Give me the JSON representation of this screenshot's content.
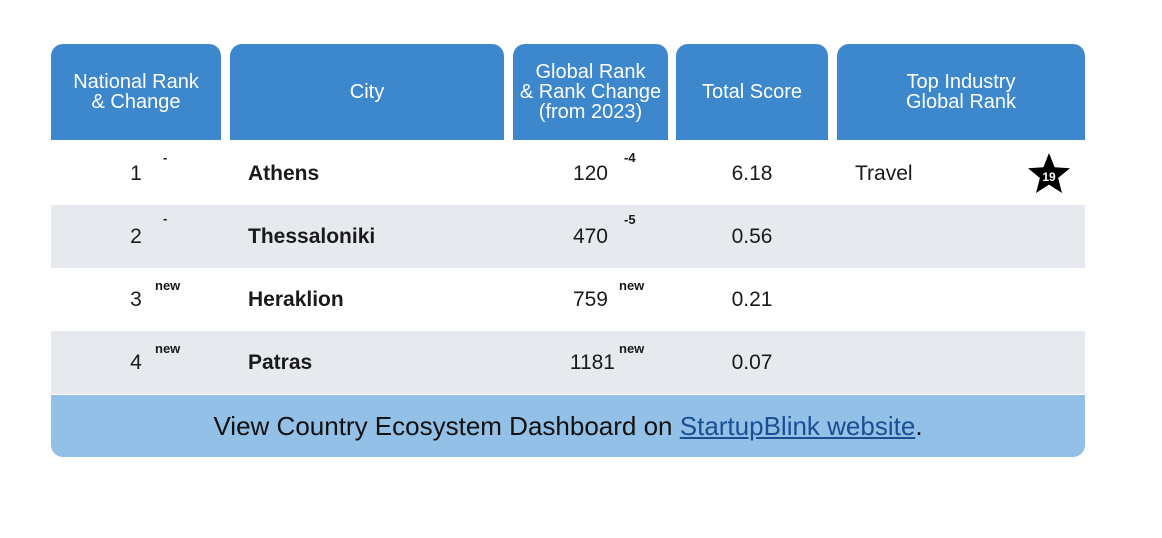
{
  "headers": {
    "national_rank": "National Rank\n& Change",
    "city": "City",
    "global_rank": "Global Rank\n& Rank Change\n(from 2023)",
    "total_score": "Total Score",
    "top_industry": "Top Industry\nGlobal Rank"
  },
  "rows": [
    {
      "rank": "1",
      "rank_change": "-",
      "city": "Athens",
      "global_rank": "120",
      "global_change": "-4",
      "score": "6.18",
      "industry": "Travel",
      "industry_rank": "19"
    },
    {
      "rank": "2",
      "rank_change": "-",
      "city": "Thessaloniki",
      "global_rank": "470",
      "global_change": "-5",
      "score": "0.56",
      "industry": "",
      "industry_rank": ""
    },
    {
      "rank": "3",
      "rank_change": "new",
      "city": "Heraklion",
      "global_rank": "759",
      "global_change": "new",
      "score": "0.21",
      "industry": "",
      "industry_rank": ""
    },
    {
      "rank": "4",
      "rank_change": "new",
      "city": "Patras",
      "global_rank": "1181",
      "global_change": "new",
      "score": "0.07",
      "industry": "",
      "industry_rank": ""
    }
  ],
  "footer": {
    "prefix": "View Country Ecosystem Dashboard on ",
    "link": "StartupBlink website",
    "suffix": "."
  },
  "colors": {
    "header_bg": "#3d87cd",
    "footer_bg": "#93c0e6",
    "alt_row": "#e6e9ee"
  }
}
